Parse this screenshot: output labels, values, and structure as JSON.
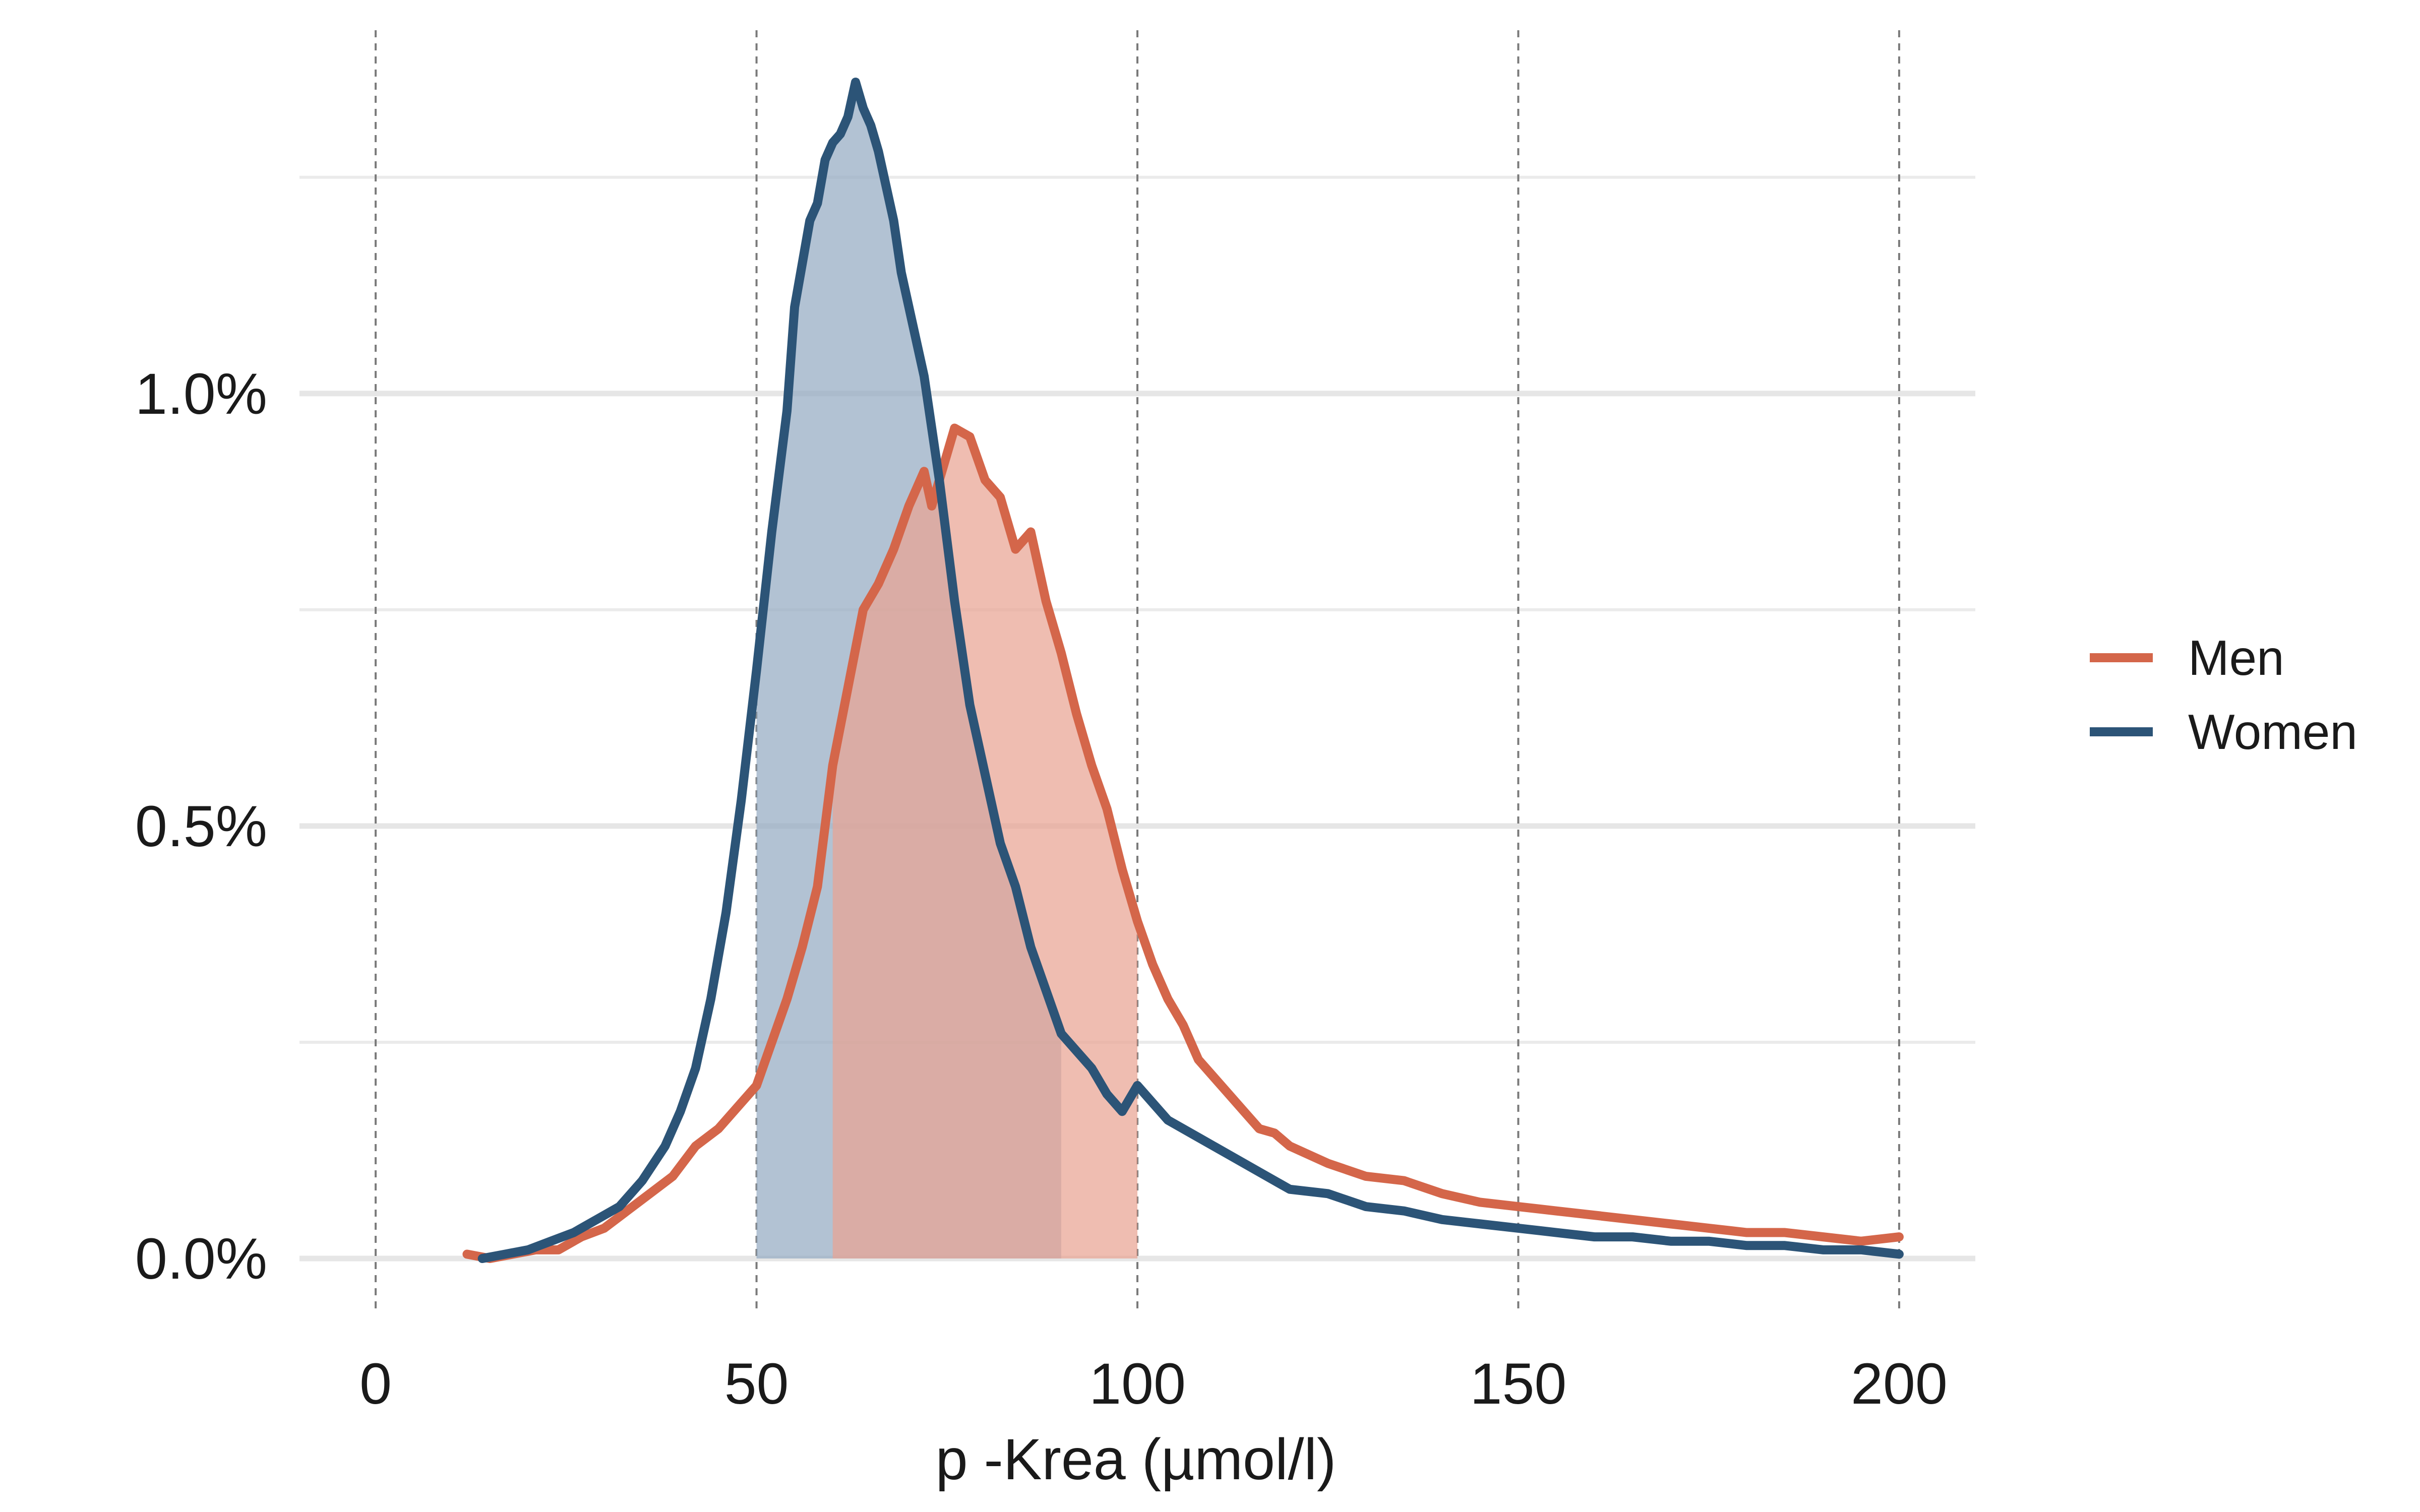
{
  "chart_data": {
    "type": "line",
    "title": "",
    "xlabel": "p -Krea (µmol/l)",
    "ylabel": "",
    "xlim": [
      -10,
      210
    ],
    "ylim": [
      -0.06,
      1.42
    ],
    "x_ticks": [
      0,
      50,
      100,
      150,
      200
    ],
    "x_tick_labels": [
      "0",
      "50",
      "100",
      "150",
      "200"
    ],
    "y_ticks": [
      0.0,
      0.5,
      1.0
    ],
    "y_tick_labels": [
      "0.0%",
      "0.5%",
      "1.0%"
    ],
    "y_minor_ticks": [
      0.25,
      0.75,
      1.25
    ],
    "vertical_reference_lines": [
      0,
      50,
      100,
      150,
      200
    ],
    "grid": true,
    "legend_position": "right",
    "series": [
      {
        "name": "Men",
        "color": "#d4664a",
        "fill_color": "#e9a393",
        "shaded_range": [
          60,
          100
        ],
        "x": [
          12,
          15,
          18,
          21,
          24,
          27,
          30,
          33,
          36,
          39,
          42,
          45,
          48,
          50,
          52,
          54,
          56,
          58,
          60,
          62,
          64,
          66,
          68,
          70,
          72,
          73,
          74,
          76,
          78,
          80,
          82,
          84,
          86,
          88,
          90,
          92,
          94,
          96,
          98,
          100,
          102,
          104,
          106,
          108,
          110,
          112,
          114,
          116,
          118,
          120,
          125,
          130,
          135,
          140,
          145,
          150,
          155,
          160,
          165,
          170,
          175,
          180,
          185,
          190,
          195,
          200
        ],
        "y": [
          0.005,
          0.0,
          0.005,
          0.01,
          0.01,
          0.025,
          0.035,
          0.055,
          0.075,
          0.095,
          0.13,
          0.15,
          0.18,
          0.2,
          0.25,
          0.3,
          0.36,
          0.43,
          0.57,
          0.66,
          0.75,
          0.78,
          0.82,
          0.87,
          0.91,
          0.87,
          0.9,
          0.96,
          0.95,
          0.9,
          0.88,
          0.82,
          0.84,
          0.76,
          0.7,
          0.63,
          0.57,
          0.52,
          0.45,
          0.39,
          0.34,
          0.3,
          0.27,
          0.23,
          0.21,
          0.19,
          0.17,
          0.15,
          0.145,
          0.13,
          0.11,
          0.095,
          0.09,
          0.075,
          0.065,
          0.06,
          0.055,
          0.05,
          0.045,
          0.04,
          0.035,
          0.03,
          0.03,
          0.025,
          0.02,
          0.025
        ]
      },
      {
        "name": "Women",
        "color": "#2c5477",
        "fill_color": "#94abc2",
        "shaded_range": [
          50,
          90
        ],
        "x": [
          14,
          17,
          20,
          23,
          26,
          29,
          32,
          35,
          38,
          40,
          42,
          44,
          46,
          48,
          50,
          52,
          54,
          55,
          56,
          57,
          58,
          59,
          60,
          61,
          62,
          63,
          64,
          65,
          66,
          67,
          68,
          69,
          70,
          72,
          74,
          75,
          76,
          78,
          80,
          82,
          84,
          86,
          88,
          90,
          92,
          94,
          96,
          98,
          100,
          104,
          108,
          112,
          116,
          120,
          125,
          130,
          135,
          140,
          145,
          150,
          155,
          160,
          165,
          170,
          175,
          180,
          185,
          190,
          195,
          200
        ],
        "y": [
          0.0,
          0.005,
          0.01,
          0.02,
          0.03,
          0.045,
          0.06,
          0.09,
          0.13,
          0.17,
          0.22,
          0.3,
          0.4,
          0.53,
          0.68,
          0.84,
          0.98,
          1.1,
          1.15,
          1.2,
          1.22,
          1.27,
          1.29,
          1.3,
          1.32,
          1.36,
          1.33,
          1.31,
          1.28,
          1.24,
          1.2,
          1.14,
          1.1,
          1.02,
          0.9,
          0.83,
          0.76,
          0.64,
          0.56,
          0.48,
          0.43,
          0.36,
          0.31,
          0.26,
          0.24,
          0.22,
          0.19,
          0.17,
          0.2,
          0.16,
          0.14,
          0.12,
          0.1,
          0.08,
          0.075,
          0.06,
          0.055,
          0.045,
          0.04,
          0.035,
          0.03,
          0.025,
          0.025,
          0.02,
          0.02,
          0.015,
          0.015,
          0.01,
          0.01,
          0.005
        ]
      }
    ]
  }
}
